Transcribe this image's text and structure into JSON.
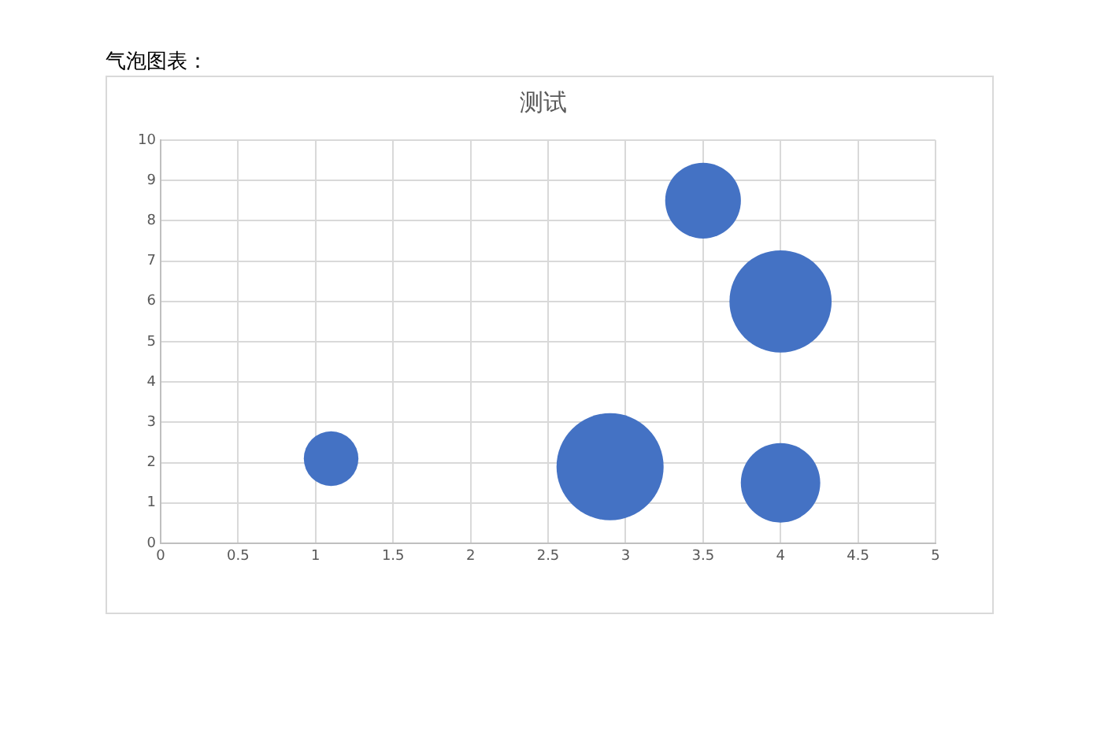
{
  "chart_data": {
    "type": "bubble",
    "title": "测试",
    "annotations": [
      "气泡图表："
    ],
    "x": [
      1.1,
      2.9,
      3.5,
      4,
      4
    ],
    "series": [
      {
        "color": "#4472c4",
        "values": [
          2.1,
          1.9,
          8.5,
          6,
          1.5
        ],
        "sizes": [
          0.26,
          1,
          0.5,
          0.91,
          0.55
        ]
      }
    ],
    "xlim": [
      0,
      5
    ],
    "xticks": [
      0,
      0.5,
      1,
      1.5,
      2,
      2.5,
      3,
      3.5,
      4,
      4.5,
      5
    ],
    "ylim": [
      0,
      10
    ],
    "yticks": [
      0,
      1,
      2,
      3,
      4,
      5,
      6,
      7,
      8,
      9,
      10
    ],
    "grid": true,
    "legend": false
  }
}
